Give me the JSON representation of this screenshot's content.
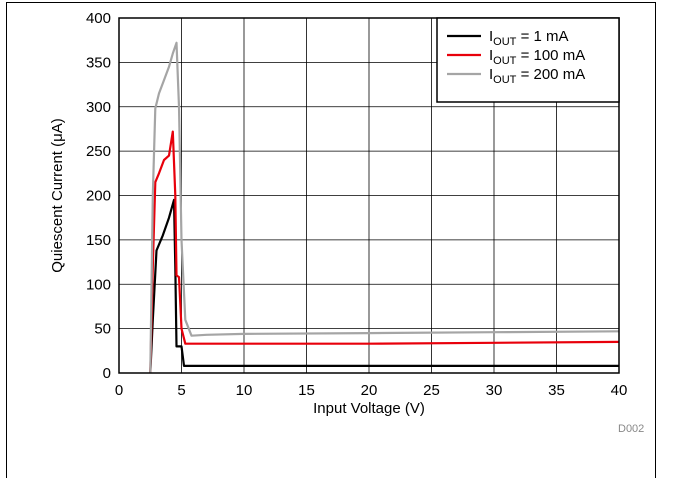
{
  "chart_data": {
    "type": "line",
    "xlabel": "Input Voltage (V)",
    "ylabel": "Quiescent Current (μA)",
    "xlim": [
      0,
      40
    ],
    "ylim": [
      0,
      400
    ],
    "xticks": [
      0,
      5,
      10,
      15,
      20,
      25,
      30,
      35,
      40
    ],
    "yticks": [
      0,
      50,
      100,
      150,
      200,
      250,
      300,
      350,
      400
    ],
    "grid": true,
    "legend_position": "top-right",
    "figure_code": "D002",
    "series": [
      {
        "name_main": "I",
        "name_sub": "OUT",
        "name_rest": " = 1 mA",
        "color": "#000000",
        "x": [
          2.5,
          2.7,
          3.0,
          3.5,
          4.0,
          4.4,
          4.5,
          4.6,
          4.8,
          5.0,
          5.2,
          6,
          10,
          20,
          30,
          40
        ],
        "y": [
          0,
          60,
          138,
          155,
          175,
          195,
          120,
          30,
          30,
          30,
          8,
          8,
          8,
          8,
          8,
          8
        ]
      },
      {
        "name_main": "I",
        "name_sub": "OUT",
        "name_rest": " = 100 mA",
        "color": "#e8000b",
        "x": [
          2.5,
          2.7,
          2.9,
          3.2,
          3.6,
          4.0,
          4.3,
          4.5,
          4.6,
          4.8,
          5.0,
          5.3,
          6,
          10,
          20,
          30,
          40
        ],
        "y": [
          0,
          120,
          215,
          225,
          240,
          245,
          272,
          200,
          110,
          108,
          50,
          33,
          33,
          33,
          33,
          34,
          35
        ]
      },
      {
        "name_main": "I",
        "name_sub": "OUT",
        "name_rest": " = 200 mA",
        "color": "#a5a5a5",
        "x": [
          2.5,
          2.7,
          2.9,
          3.2,
          3.6,
          4.0,
          4.3,
          4.6,
          4.8,
          5.0,
          5.3,
          5.8,
          7,
          10,
          20,
          30,
          40
        ],
        "y": [
          0,
          200,
          298,
          315,
          330,
          345,
          360,
          372,
          300,
          150,
          60,
          42,
          43,
          44,
          45,
          46,
          47
        ]
      }
    ]
  }
}
